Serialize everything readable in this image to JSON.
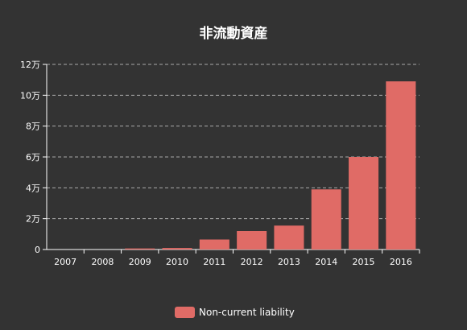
{
  "chart_data": {
    "type": "bar",
    "title": "非流動資産",
    "categories": [
      "2007",
      "2008",
      "2009",
      "2010",
      "2011",
      "2012",
      "2013",
      "2014",
      "2015",
      "2016"
    ],
    "series": [
      {
        "name": "Non-current liability",
        "color": "#e06b66",
        "values": [
          0,
          0,
          700,
          1000,
          6500,
          12000,
          15500,
          39000,
          60000,
          109000
        ]
      }
    ],
    "ylim": [
      0,
      120000
    ],
    "yticks": [
      {
        "value": 0,
        "label": "0"
      },
      {
        "value": 20000,
        "label": "2万"
      },
      {
        "value": 40000,
        "label": "4万"
      },
      {
        "value": 60000,
        "label": "6万"
      },
      {
        "value": 80000,
        "label": "8万"
      },
      {
        "value": 100000,
        "label": "10万"
      },
      {
        "value": 120000,
        "label": "12万"
      }
    ],
    "grid": true,
    "legend_position": "bottom-center"
  }
}
